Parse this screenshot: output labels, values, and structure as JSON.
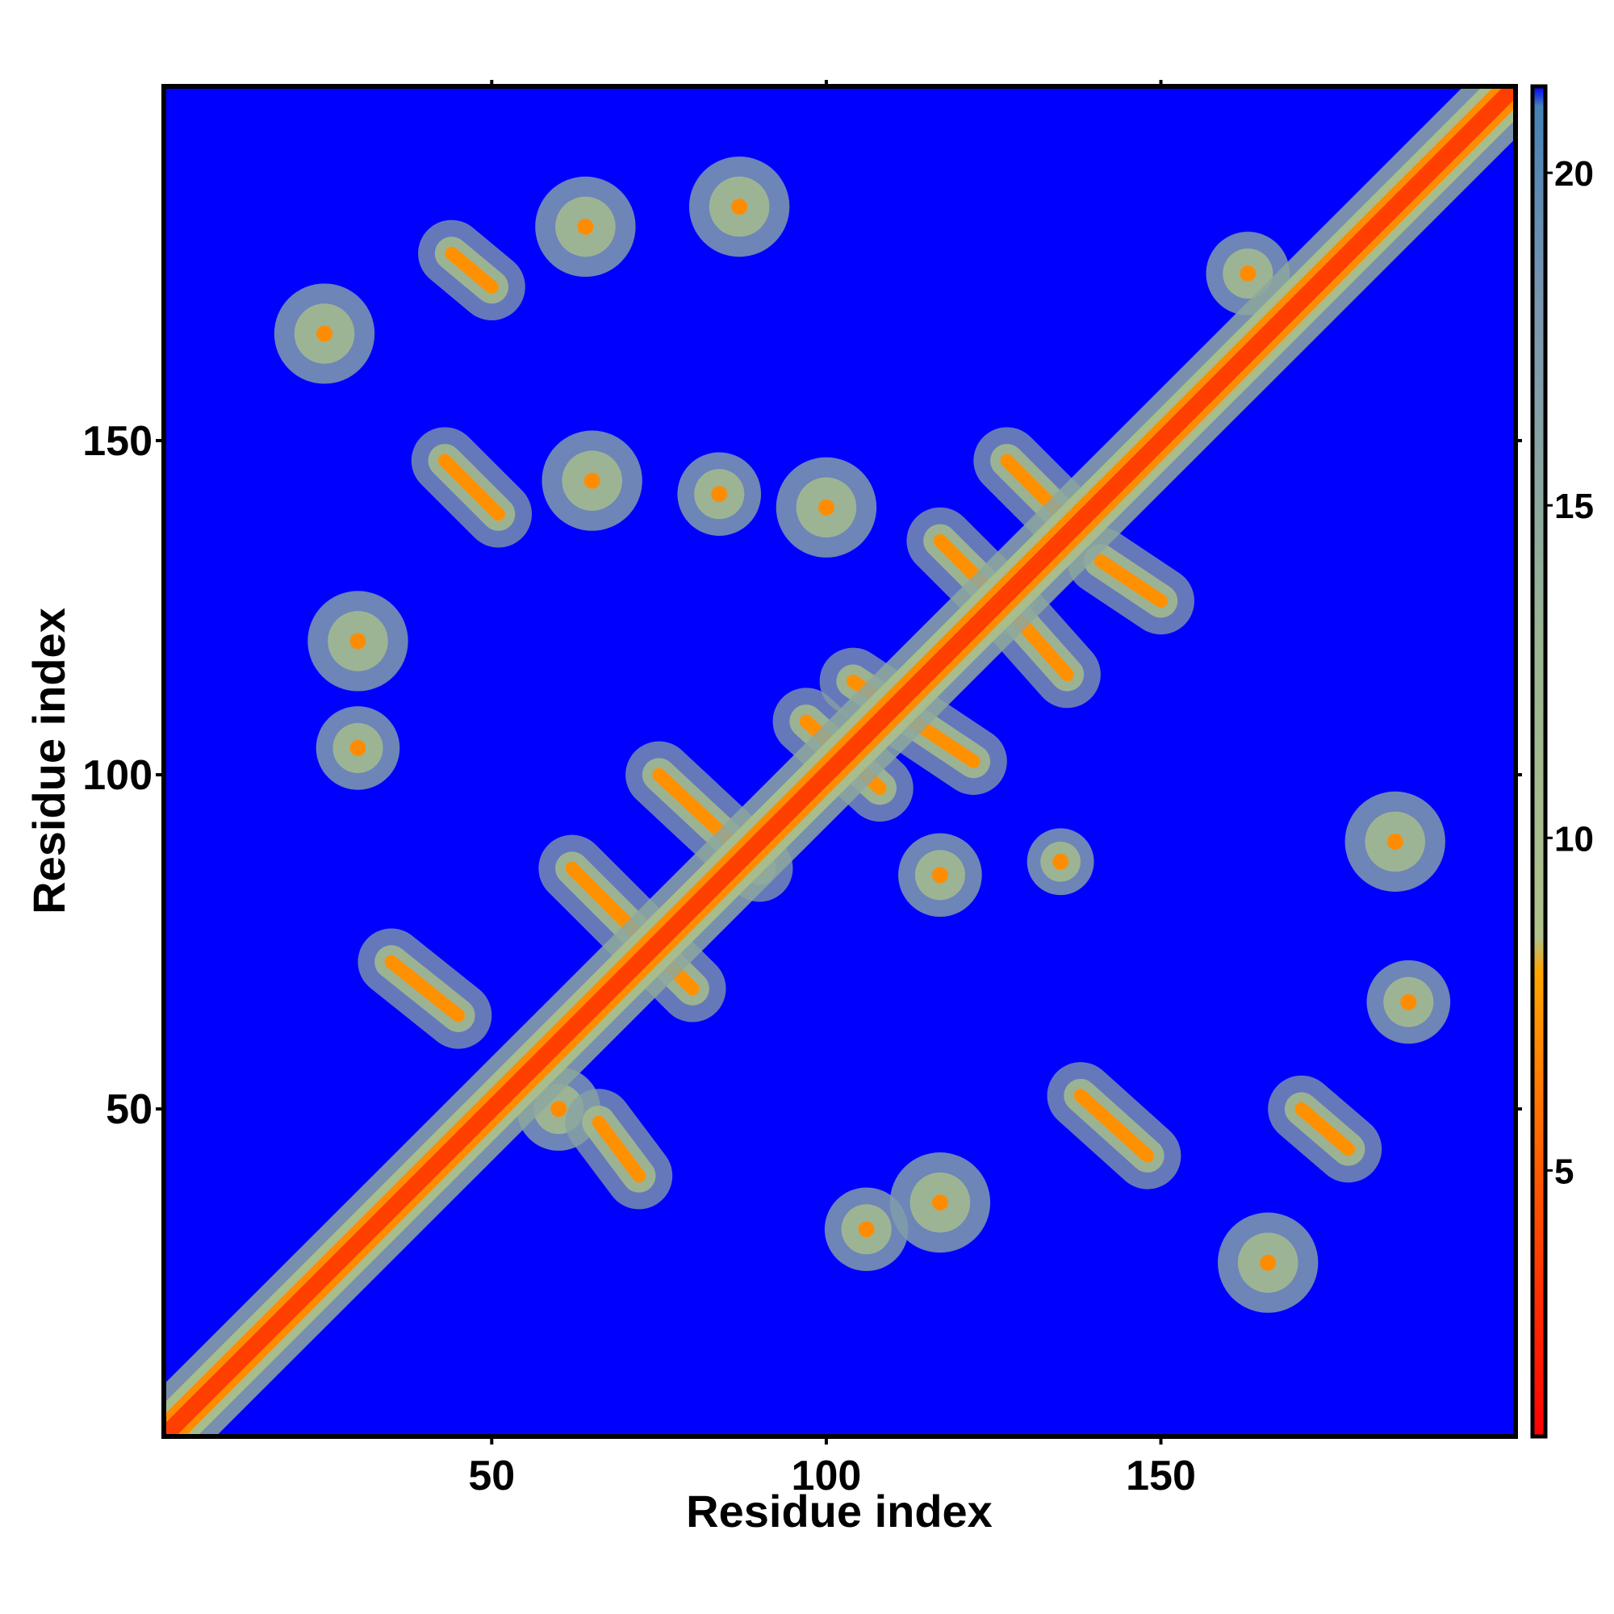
{
  "chart_data": {
    "type": "heatmap",
    "title": "",
    "xlabel": "Residue index",
    "ylabel": "Residue index",
    "xlim": [
      1,
      203
    ],
    "ylim": [
      1,
      203
    ],
    "x_ticks": [
      50,
      100,
      150
    ],
    "y_ticks": [
      50,
      100,
      150
    ],
    "colorbar": {
      "range": [
        1,
        21.3
      ],
      "ticks": [
        5,
        10,
        15,
        20
      ],
      "color_stops": [
        {
          "value": 1.0,
          "color": "#ff0000"
        },
        {
          "value": 5.0,
          "color": "#ff5a00"
        },
        {
          "value": 8.0,
          "color": "#ffa500"
        },
        {
          "value": 8.5,
          "color": "#aec28a"
        },
        {
          "value": 13.0,
          "color": "#9ab493"
        },
        {
          "value": 18.0,
          "color": "#7a96b0"
        },
        {
          "value": 21.0,
          "color": "#4682b4"
        },
        {
          "value": 21.3,
          "color": "#0000ff"
        }
      ]
    },
    "background_value": 21.3,
    "diagonal": {
      "from": 1,
      "to": 203,
      "value": 3.8
    },
    "contact_bands": [
      {
        "start": [
          62,
          86
        ],
        "end": [
          80,
          68
        ]
      },
      {
        "start": [
          75,
          100
        ],
        "end": [
          90,
          86
        ]
      },
      {
        "start": [
          66,
          48
        ],
        "end": [
          72,
          40
        ]
      },
      {
        "start": [
          35,
          72
        ],
        "end": [
          45,
          64
        ]
      },
      {
        "start": [
          104,
          114
        ],
        "end": [
          122,
          102
        ]
      },
      {
        "start": [
          97,
          108
        ],
        "end": [
          108,
          98
        ]
      },
      {
        "start": [
          117,
          135
        ],
        "end": [
          126,
          126
        ]
      },
      {
        "start": [
          128,
          124
        ],
        "end": [
          136,
          115
        ]
      },
      {
        "start": [
          127,
          147
        ],
        "end": [
          136,
          138
        ]
      },
      {
        "start": [
          141,
          132
        ],
        "end": [
          150,
          126
        ]
      },
      {
        "start": [
          138,
          52
        ],
        "end": [
          148,
          43
        ]
      },
      {
        "start": [
          171,
          50
        ],
        "end": [
          178,
          44
        ]
      },
      {
        "start": [
          43,
          147
        ],
        "end": [
          51,
          139
        ]
      },
      {
        "start": [
          44,
          178
        ],
        "end": [
          50,
          173
        ]
      }
    ],
    "contact_clusters": [
      {
        "center": [
          25,
          166
        ],
        "radius": 6
      },
      {
        "center": [
          87,
          185
        ],
        "radius": 6
      },
      {
        "center": [
          64,
          182
        ],
        "radius": 6
      },
      {
        "center": [
          30,
          120
        ],
        "radius": 6
      },
      {
        "center": [
          30,
          104
        ],
        "radius": 5
      },
      {
        "center": [
          65,
          144
        ],
        "radius": 6
      },
      {
        "center": [
          84,
          142
        ],
        "radius": 5
      },
      {
        "center": [
          100,
          140
        ],
        "radius": 6
      },
      {
        "center": [
          117,
          36
        ],
        "radius": 6
      },
      {
        "center": [
          166,
          27
        ],
        "radius": 6
      },
      {
        "center": [
          185,
          90
        ],
        "radius": 6
      },
      {
        "center": [
          187,
          66
        ],
        "radius": 5
      },
      {
        "center": [
          106,
          32
        ],
        "radius": 5
      },
      {
        "center": [
          117,
          85
        ],
        "radius": 5
      },
      {
        "center": [
          135,
          87
        ],
        "radius": 4
      },
      {
        "center": [
          163,
          175
        ],
        "radius": 5
      },
      {
        "center": [
          60,
          50
        ],
        "radius": 5
      }
    ]
  }
}
